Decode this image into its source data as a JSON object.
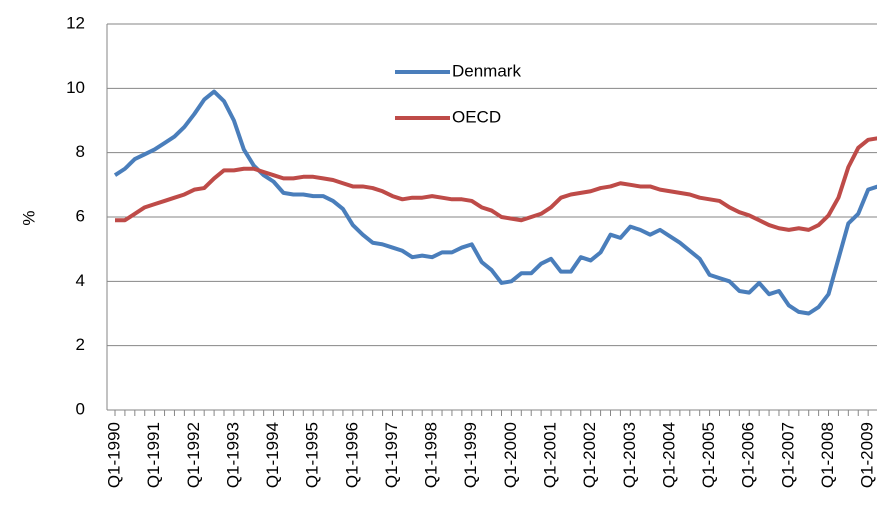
{
  "chart_data": {
    "type": "line",
    "y_label": "%",
    "categories": [
      "Q1-1990",
      null,
      null,
      null,
      "Q1-1991",
      null,
      null,
      null,
      "Q1-1992",
      null,
      null,
      null,
      "Q1-1993",
      null,
      null,
      null,
      "Q1-1994",
      null,
      null,
      null,
      "Q1-1995",
      null,
      null,
      null,
      "Q1-1996",
      null,
      null,
      null,
      "Q1-1997",
      null,
      null,
      null,
      "Q1-1998",
      null,
      null,
      null,
      "Q1-1999",
      null,
      null,
      null,
      "Q1-2000",
      null,
      null,
      null,
      "Q1-2001",
      null,
      null,
      null,
      "Q1-2002",
      null,
      null,
      null,
      "Q1-2003",
      null,
      null,
      null,
      "Q1-2004",
      null,
      null,
      null,
      "Q1-2005",
      null,
      null,
      null,
      "Q1-2006",
      null,
      null,
      null,
      "Q1-2007",
      null,
      null,
      null,
      "Q1-2008",
      null,
      null,
      null,
      "Q1-2009",
      null
    ],
    "series": [
      {
        "name": "Denmark",
        "color": "#4a7ebb",
        "values": [
          7.3,
          7.5,
          7.8,
          7.95,
          8.1,
          8.3,
          8.5,
          8.8,
          9.2,
          9.65,
          9.9,
          9.6,
          9.0,
          8.1,
          7.6,
          7.3,
          7.1,
          6.75,
          6.7,
          6.7,
          6.65,
          6.65,
          6.5,
          6.25,
          5.75,
          5.45,
          5.2,
          5.15,
          5.05,
          4.95,
          4.75,
          4.8,
          4.75,
          4.9,
          4.9,
          5.05,
          5.15,
          4.6,
          4.35,
          3.95,
          4.0,
          4.25,
          4.25,
          4.55,
          4.7,
          4.3,
          4.3,
          4.75,
          4.65,
          4.9,
          5.45,
          5.35,
          5.7,
          5.6,
          5.45,
          5.6,
          5.4,
          5.2,
          4.95,
          4.7,
          4.2,
          4.1,
          4.0,
          3.7,
          3.65,
          3.95,
          3.6,
          3.7,
          3.25,
          3.05,
          3.0,
          3.2,
          3.6,
          4.7,
          5.8,
          6.1,
          6.85,
          6.95
        ]
      },
      {
        "name": "OECD",
        "color": "#be4b48",
        "values": [
          5.9,
          5.9,
          6.1,
          6.3,
          6.4,
          6.5,
          6.6,
          6.7,
          6.85,
          6.9,
          7.2,
          7.45,
          7.45,
          7.5,
          7.5,
          7.4,
          7.3,
          7.2,
          7.2,
          7.25,
          7.25,
          7.2,
          7.15,
          7.05,
          6.95,
          6.95,
          6.9,
          6.8,
          6.65,
          6.55,
          6.6,
          6.6,
          6.65,
          6.6,
          6.55,
          6.55,
          6.5,
          6.3,
          6.2,
          6.0,
          5.95,
          5.9,
          6.0,
          6.1,
          6.3,
          6.6,
          6.7,
          6.75,
          6.8,
          6.9,
          6.95,
          7.05,
          7.0,
          6.95,
          6.95,
          6.85,
          6.8,
          6.75,
          6.7,
          6.6,
          6.55,
          6.5,
          6.3,
          6.15,
          6.05,
          5.9,
          5.75,
          5.65,
          5.6,
          5.65,
          5.6,
          5.75,
          6.05,
          6.6,
          7.55,
          8.15,
          8.4,
          8.45
        ]
      }
    ],
    "ylim": [
      0,
      12
    ],
    "yticks": [
      0,
      2,
      4,
      6,
      8,
      10,
      12
    ],
    "grid": true
  }
}
